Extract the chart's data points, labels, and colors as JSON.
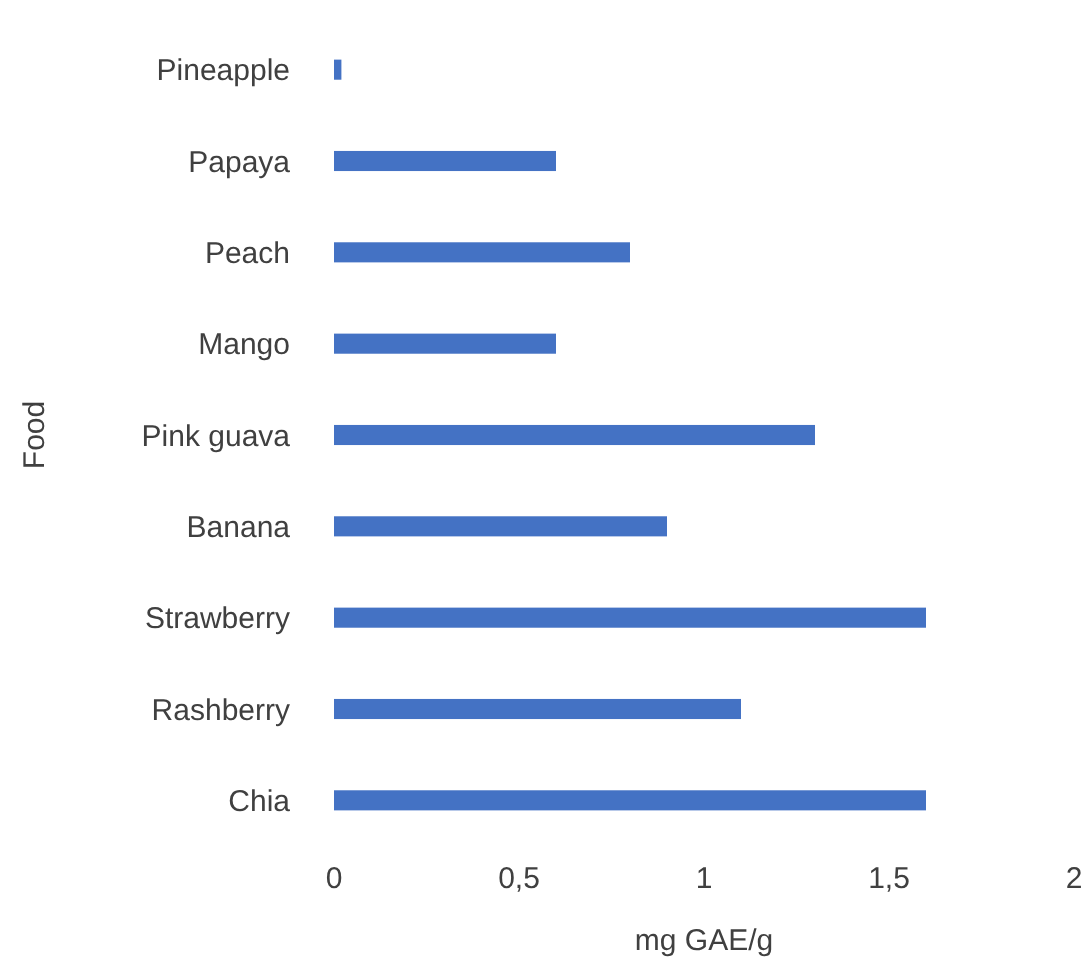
{
  "chart_data": {
    "type": "bar",
    "orientation": "horizontal",
    "xlabel": "mg GAE/g",
    "ylabel": "Food",
    "categories": [
      "Pineapple",
      "Papaya",
      "Peach",
      "Mango",
      "Pink guava",
      "Banana",
      "Strawberry",
      "Rashberry",
      "Chia"
    ],
    "values": [
      0.02,
      0.6,
      0.8,
      0.6,
      1.3,
      0.9,
      1.6,
      1.1,
      1.6
    ],
    "color": "#4472c4",
    "xlim": [
      0,
      2
    ],
    "xticks": [
      0,
      {
        "value": 0.5,
        "label": "0,5"
      },
      1,
      {
        "value": 1.5,
        "label": "1,5"
      },
      2
    ],
    "grid": false
  }
}
